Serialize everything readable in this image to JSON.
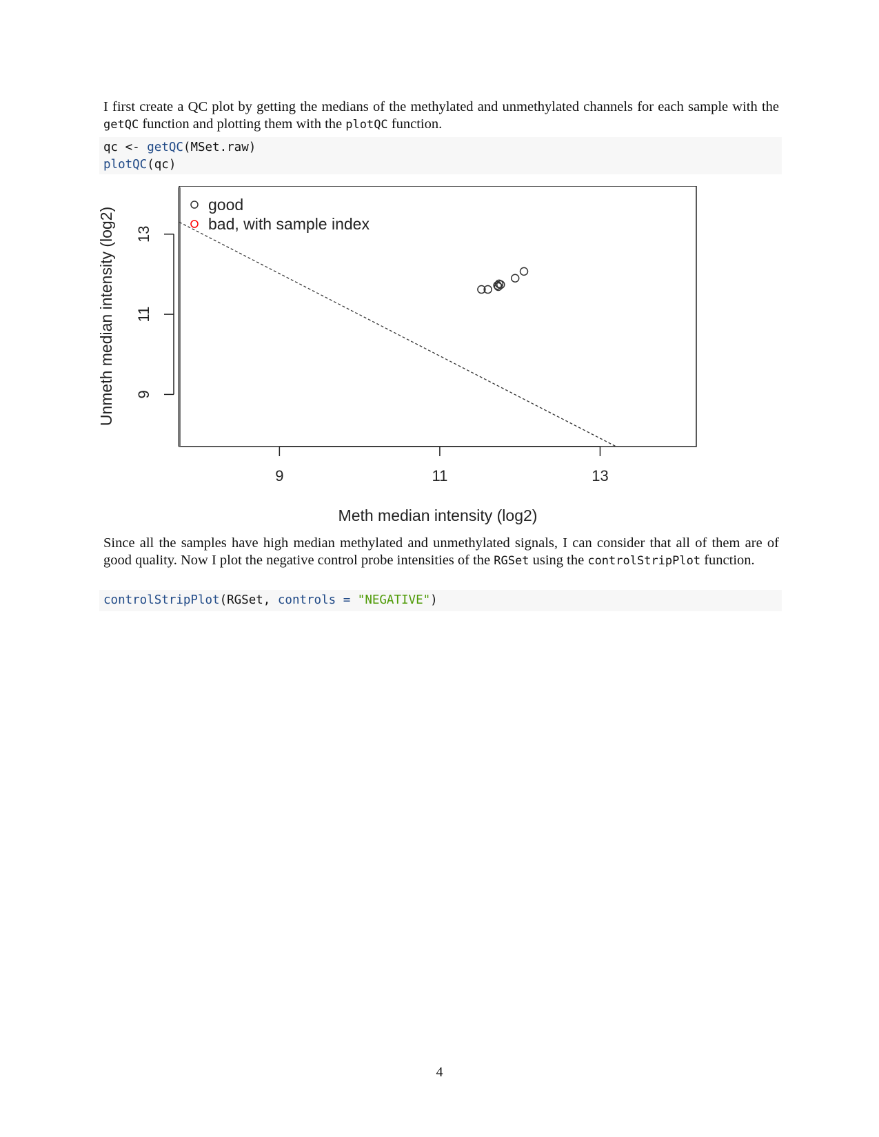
{
  "paragraph1": {
    "t1": "I first create a QC plot by getting the medians of the methylated and unmethylated channels for each sample with the ",
    "c1": "getQC",
    "t2": " function and plotting them with the ",
    "c2": "plotQC",
    "t3": " function."
  },
  "code1": {
    "line1_pre": "qc <- ",
    "line1_fn": "getQC",
    "line1_post": "(MSet.raw)",
    "line2_fn": "plotQC",
    "line2_post": "(qc)"
  },
  "paragraph2": {
    "t1": "Since all the samples have high median methylated and unmethylated signals, I can consider that all of them are of good quality. Now I plot the negative control probe intensities of the ",
    "c1": "RGSet",
    "t2": " using the ",
    "c2": "controlStripPlot",
    "t3": " function."
  },
  "code2": {
    "fn": "controlStripPlot",
    "open": "(RGSet, ",
    "arg": "controls",
    "eq": " = ",
    "str": "\"NEGATIVE\"",
    "close": ")"
  },
  "page_number": "4",
  "chart_data": {
    "type": "scatter",
    "xlabel": "Meth median intensity (log2)",
    "ylabel": "Unmeth median intensity (log2)",
    "xticks": [
      9,
      11,
      13
    ],
    "yticks": [
      9,
      11,
      13
    ],
    "xlim": [
      7.75,
      14.2
    ],
    "ylim": [
      7.7,
      14.2
    ],
    "legend": {
      "position": "top-left",
      "entries": [
        {
          "label": "good",
          "color": "#333333"
        },
        {
          "label": "bad, with sample index",
          "color": "#ff0000"
        }
      ]
    },
    "cutoff_line": {
      "x": [
        7.75,
        13.2
      ],
      "y": [
        13.3,
        7.7
      ],
      "style": "dashed"
    },
    "points": [
      {
        "x": 11.52,
        "y": 11.62
      },
      {
        "x": 11.6,
        "y": 11.62
      },
      {
        "x": 11.72,
        "y": 11.72
      },
      {
        "x": 11.74,
        "y": 11.76
      },
      {
        "x": 11.76,
        "y": 11.74
      },
      {
        "x": 11.73,
        "y": 11.69
      },
      {
        "x": 11.94,
        "y": 11.9
      },
      {
        "x": 12.05,
        "y": 12.07
      }
    ]
  }
}
